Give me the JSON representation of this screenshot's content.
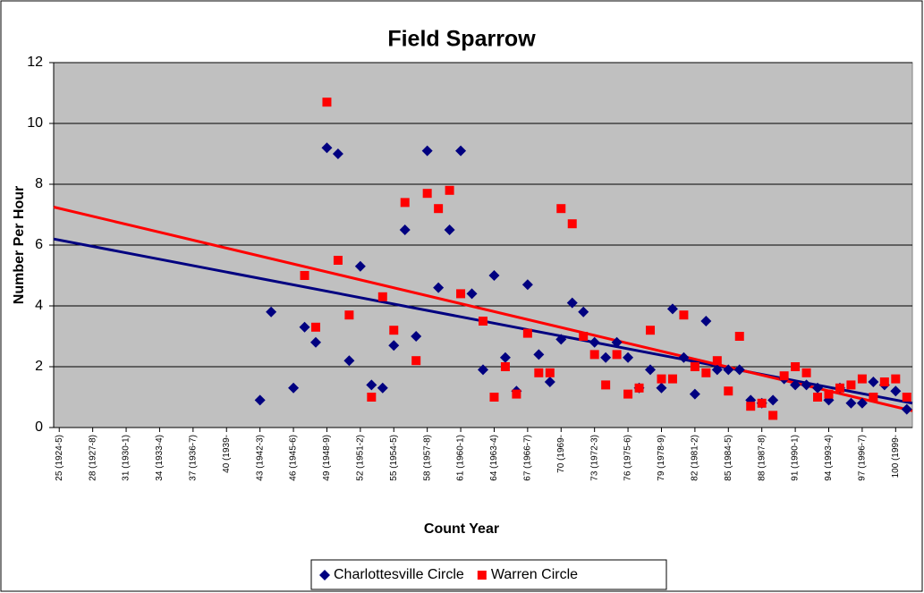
{
  "chart_data": {
    "type": "scatter",
    "title": "Field Sparrow",
    "x_label": "Count Year",
    "y_label": "Number Per Hour",
    "xlim": [
      24.5,
      101.5
    ],
    "ylim": [
      0,
      12
    ],
    "yticks": [
      0,
      2,
      4,
      6,
      8,
      10,
      12
    ],
    "grid": true,
    "legend": "bottom",
    "xticks": [
      {
        "value": 25,
        "label": "25 (1924-5)"
      },
      {
        "value": 28,
        "label": "28 (1927-8)"
      },
      {
        "value": 31,
        "label": "31 (1930-1)"
      },
      {
        "value": 34,
        "label": "34 (1933-4)"
      },
      {
        "value": 37,
        "label": "37 (1936-7)"
      },
      {
        "value": 40,
        "label": "40 (1939-"
      },
      {
        "value": 43,
        "label": "43 (1942-3)"
      },
      {
        "value": 46,
        "label": "46 (1945-6)"
      },
      {
        "value": 49,
        "label": "49 (1948-9)"
      },
      {
        "value": 52,
        "label": "52 (1951-2)"
      },
      {
        "value": 55,
        "label": "55 (1954-5)"
      },
      {
        "value": 58,
        "label": "58 (1957-8)"
      },
      {
        "value": 61,
        "label": "61 (1960-1)"
      },
      {
        "value": 64,
        "label": "64 (1963-4)"
      },
      {
        "value": 67,
        "label": "67 (1966-7)"
      },
      {
        "value": 70,
        "label": "70 (1969-"
      },
      {
        "value": 73,
        "label": "73 (1972-3)"
      },
      {
        "value": 76,
        "label": "76 (1975-6)"
      },
      {
        "value": 79,
        "label": "79 (1978-9)"
      },
      {
        "value": 82,
        "label": "82 (1981-2)"
      },
      {
        "value": 85,
        "label": "85 (1984-5)"
      },
      {
        "value": 88,
        "label": "88 (1987-8)"
      },
      {
        "value": 91,
        "label": "91 (1990-1)"
      },
      {
        "value": 94,
        "label": "94 (1993-4)"
      },
      {
        "value": 97,
        "label": "97 (1996-7)"
      },
      {
        "value": 100,
        "label": "100 (1999-"
      }
    ],
    "series": [
      {
        "name": "Charlottesville Circle",
        "color": "#000080",
        "marker": "diamond",
        "x": [
          43,
          44,
          46,
          47,
          48,
          49,
          50,
          51,
          52,
          53,
          54,
          55,
          56,
          57,
          58,
          59,
          60,
          61,
          62,
          63,
          64,
          65,
          66,
          67,
          68,
          69,
          70,
          71,
          72,
          73,
          74,
          75,
          76,
          77,
          78,
          79,
          80,
          81,
          82,
          83,
          84,
          85,
          86,
          87,
          88,
          89,
          90,
          91,
          92,
          93,
          94,
          95,
          96,
          97,
          98,
          99,
          100,
          101
        ],
        "values": [
          0.9,
          3.8,
          1.3,
          3.3,
          2.8,
          9.2,
          9.0,
          2.2,
          5.3,
          1.4,
          1.3,
          2.7,
          6.5,
          3.0,
          9.1,
          4.6,
          6.5,
          9.1,
          4.4,
          1.9,
          5.0,
          2.3,
          1.2,
          4.7,
          2.4,
          1.5,
          2.9,
          4.1,
          3.8,
          2.8,
          2.3,
          2.8,
          2.3,
          1.3,
          1.9,
          1.3,
          3.9,
          2.3,
          1.1,
          3.5,
          1.9,
          1.9,
          1.9,
          0.9,
          0.8,
          0.9,
          1.6,
          1.4,
          1.4,
          1.3,
          0.9,
          1.3,
          0.8,
          0.8,
          1.5,
          1.4,
          1.2,
          0.6
        ]
      },
      {
        "name": "Warren Circle",
        "color": "#ff0000",
        "marker": "square",
        "x": [
          47,
          48,
          49,
          50,
          51,
          53,
          54,
          55,
          56,
          57,
          58,
          59,
          60,
          61,
          63,
          64,
          65,
          66,
          67,
          68,
          69,
          70,
          71,
          72,
          73,
          74,
          75,
          76,
          77,
          78,
          79,
          80,
          81,
          82,
          83,
          84,
          85,
          86,
          87,
          88,
          89,
          90,
          91,
          92,
          93,
          94,
          95,
          96,
          97,
          98,
          99,
          100,
          101
        ],
        "values": [
          5.0,
          3.3,
          10.7,
          5.5,
          3.7,
          1.0,
          4.3,
          3.2,
          7.4,
          2.2,
          7.7,
          7.2,
          7.8,
          4.4,
          3.5,
          1.0,
          2.0,
          1.1,
          3.1,
          1.8,
          1.8,
          7.2,
          6.7,
          3.0,
          2.4,
          1.4,
          2.4,
          1.1,
          1.3,
          3.2,
          1.6,
          1.6,
          3.7,
          2.0,
          1.8,
          2.2,
          1.2,
          3.0,
          0.7,
          0.8,
          0.4,
          1.7,
          2.0,
          1.8,
          1.0,
          1.1,
          1.3,
          1.4,
          1.6,
          1.0,
          1.5,
          1.6,
          1.0
        ]
      }
    ],
    "trendlines": [
      {
        "color": "#000080",
        "x": [
          24.5,
          101.5
        ],
        "values": [
          6.2,
          0.8
        ]
      },
      {
        "color": "#ff0000",
        "x": [
          24.5,
          101.5
        ],
        "values": [
          7.25,
          0.55
        ]
      }
    ]
  }
}
